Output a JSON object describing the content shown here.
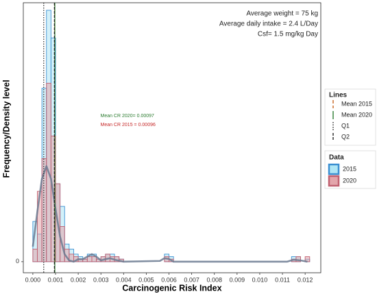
{
  "chart_data": {
    "type": "histogram",
    "x_label": "Carcinogenic Risk Index",
    "y_label": "Frequency/Density level",
    "lines_legend_title": "Lines",
    "data_legend_title": "Data",
    "info": [
      "Average weight = 75 kg",
      "Average daily intake = 2.4 L/Day",
      "Csf= 1.5 mg/kg Day"
    ],
    "annotations": [
      {
        "text": "Mean CR 2020= 0.00097",
        "color": "#2e7d32",
        "x": 0.0031,
        "y": 58
      },
      {
        "text": "Mean CR 2015 = 0.00096",
        "color": "#c62828",
        "x": 0.0031,
        "y": 54.5
      }
    ],
    "xlim": [
      -0.00042,
      0.01269
    ],
    "ylim": [
      -4.4,
      103
    ],
    "xticks": [
      {
        "value": 0,
        "label": "0.000"
      },
      {
        "value": 0.001,
        "label": "0.001"
      },
      {
        "value": 0.002,
        "label": "0.002"
      },
      {
        "value": 0.003,
        "label": "0.003"
      },
      {
        "value": 0.004,
        "label": "0.004"
      },
      {
        "value": 0.005,
        "label": "0.005"
      },
      {
        "value": 0.006,
        "label": "0.006"
      },
      {
        "value": 0.007,
        "label": "0.007"
      },
      {
        "value": 0.008,
        "label": "0.008"
      },
      {
        "value": 0.009,
        "label": "0.009"
      },
      {
        "value": 0.01,
        "label": "0.010"
      },
      {
        "value": 0.011,
        "label": "0.011"
      },
      {
        "value": 0.012,
        "label": "0.012"
      }
    ],
    "yticks": [
      0
    ],
    "bins": [
      0,
      0.0002,
      0.0004,
      0.0006,
      0.0008,
      0.001,
      0.0012,
      0.0014,
      0.0016,
      0.0018,
      0.002,
      0.0022,
      0.0024,
      0.0026,
      0.0028,
      0.003,
      0.0032,
      0.0034,
      0.0036,
      0.0038,
      0.004,
      0.0042,
      0.0044,
      0.0046,
      0.0048,
      0.005,
      0.0052,
      0.0054,
      0.0056,
      0.0058,
      0.006,
      0.0062,
      0.0064,
      0.0066,
      0.0068,
      0.007,
      0.0072,
      0.0074,
      0.0076,
      0.0078,
      0.008,
      0.0082,
      0.0084,
      0.0086,
      0.0088,
      0.009,
      0.0092,
      0.0094,
      0.0096,
      0.0098,
      0.01,
      0.0102,
      0.0104,
      0.0106,
      0.0108,
      0.011,
      0.0112,
      0.0114,
      0.0116,
      0.0118,
      0.012,
      0.0122
    ],
    "series": [
      {
        "name": "2015",
        "color": "#3a8fd1",
        "fill": "#aee6f5",
        "values": [
          16,
          11,
          69,
          100,
          89,
          31,
          22,
          7,
          5,
          3,
          2,
          1,
          3,
          3,
          1,
          2,
          3,
          3,
          2,
          1,
          0,
          0,
          0,
          0,
          0,
          0,
          0,
          0,
          0,
          3,
          2,
          0,
          0,
          0,
          0,
          0,
          0,
          0,
          0,
          0,
          0,
          0,
          0,
          0,
          0,
          0,
          0,
          0,
          0,
          0,
          0,
          0,
          0,
          0,
          0,
          0,
          0,
          2,
          2,
          0,
          1
        ]
      },
      {
        "name": "2020",
        "color": "#c06070",
        "fill": "#e3a5ab",
        "values": [
          5,
          28,
          41,
          71,
          50,
          31,
          14,
          5,
          3,
          2,
          1,
          1,
          2,
          2,
          1,
          2,
          3,
          2,
          2,
          1,
          0,
          0,
          0,
          0,
          0,
          0,
          0,
          0,
          0,
          2,
          1,
          0,
          0,
          0,
          0,
          0,
          0,
          0,
          0,
          0,
          0,
          0,
          0,
          0,
          0,
          0,
          0,
          0,
          0,
          0,
          0,
          0,
          0,
          0,
          0,
          0,
          0,
          1,
          2,
          0,
          2
        ]
      }
    ],
    "density": {
      "color": "#6b7a90",
      "x": [
        0,
        0.0002,
        0.0004,
        0.0006,
        0.0008,
        0.001,
        0.0012,
        0.0014,
        0.0016,
        0.0018,
        0.002,
        0.0022,
        0.0024,
        0.0026,
        0.0028,
        0.003,
        0.0032,
        0.0034,
        0.0036,
        0.004,
        0.0056,
        0.0058,
        0.006,
        0.0062,
        0.0112,
        0.0115,
        0.0118,
        0.0121
      ],
      "values": [
        6,
        20,
        33,
        38,
        33,
        21,
        10,
        3,
        0.5,
        0,
        1,
        1,
        2,
        3,
        2,
        0.5,
        1,
        1.4,
        0.8,
        0,
        0.3,
        1.4,
        1.1,
        0,
        0,
        0.8,
        0.5,
        0
      ]
    },
    "vlines": [
      {
        "name": "Mean 2015",
        "value": 0.00096,
        "color": "#c8641e",
        "dash": "5,3"
      },
      {
        "name": "Mean 2020",
        "value": 0.00097,
        "color": "#2e7d32",
        "dash": "none"
      },
      {
        "name": "Q1",
        "value": 0.00048,
        "color": "#222222",
        "dash": "1.5,2"
      },
      {
        "name": "Q2",
        "value": 0.00095,
        "color": "#222222",
        "dash": "4,2"
      }
    ]
  }
}
